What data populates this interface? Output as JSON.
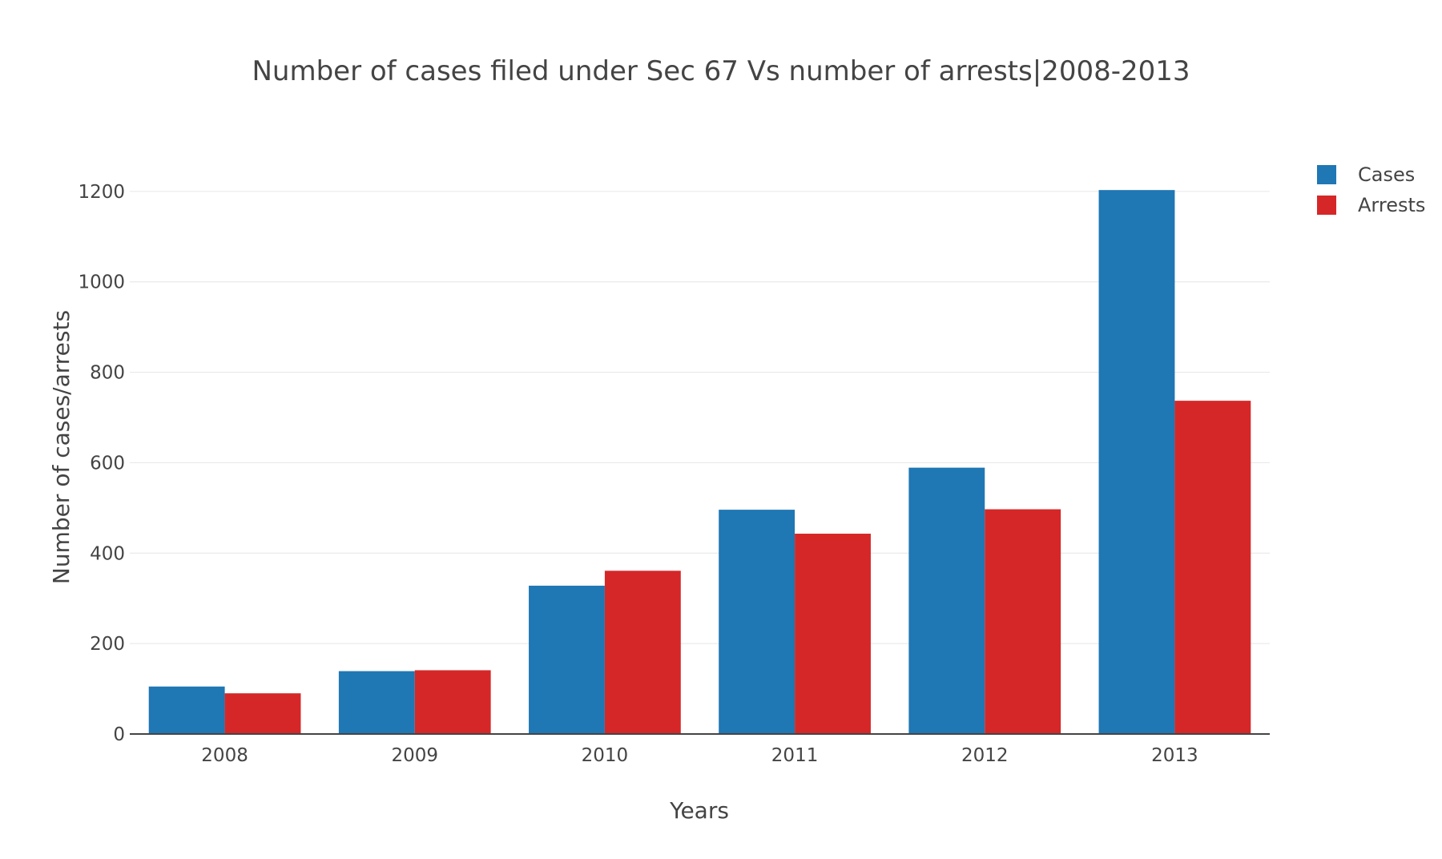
{
  "chart_data": {
    "type": "bar",
    "title": "Number of cases filed under Sec 67 Vs number of arrests|2008-2013",
    "xlabel": "Years",
    "ylabel": "Number of cases/arrests",
    "categories": [
      "2008",
      "2009",
      "2010",
      "2011",
      "2012",
      "2013"
    ],
    "series": [
      {
        "name": "Cases",
        "color": "#1f77b4",
        "values": [
          105,
          139,
          328,
          496,
          589,
          1203
        ]
      },
      {
        "name": "Arrests",
        "color": "#d62728",
        "values": [
          90,
          141,
          361,
          443,
          497,
          737
        ]
      }
    ],
    "ylim": [
      0,
      1260
    ],
    "yticks": [
      0,
      200,
      400,
      600,
      800,
      1000,
      1200
    ],
    "grid": true,
    "legend_position": "top-right"
  }
}
